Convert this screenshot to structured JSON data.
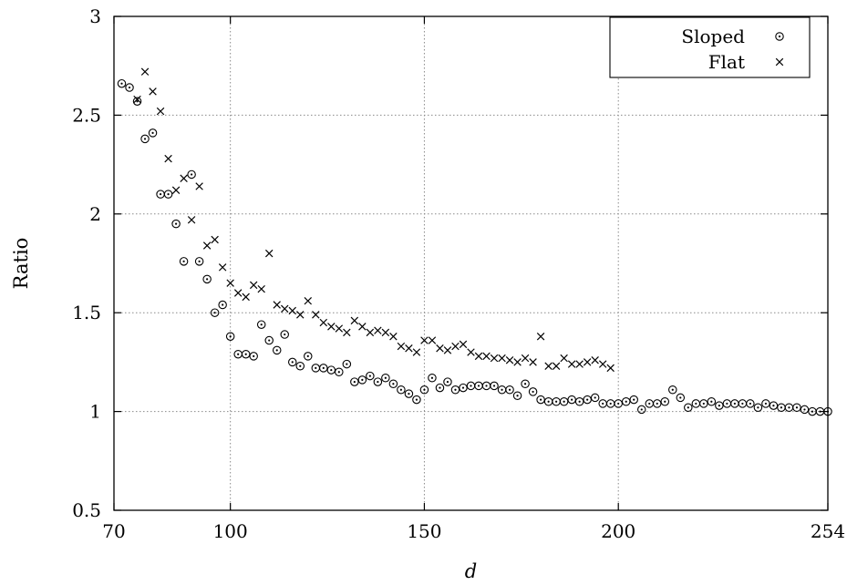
{
  "chart_data": {
    "type": "scatter",
    "title": "",
    "xlabel": "d",
    "ylabel": "Ratio",
    "xlim": [
      70,
      254
    ],
    "ylim": [
      0.5,
      3
    ],
    "x_ticks": [
      70,
      100,
      150,
      200,
      254
    ],
    "x_tick_labels": [
      "70",
      "100",
      "150",
      "200",
      "254"
    ],
    "y_ticks": [
      0.5,
      1,
      1.5,
      2,
      2.5,
      3
    ],
    "y_tick_labels": [
      "0.5",
      "1",
      "1.5",
      "2",
      "2.5",
      "3"
    ],
    "grid": true,
    "legend": "top-right",
    "series": [
      {
        "name": "Sloped",
        "marker": "circle-dot",
        "color": "#000000",
        "points": [
          [
            72,
            2.66
          ],
          [
            74,
            2.64
          ],
          [
            76,
            2.57
          ],
          [
            78,
            2.38
          ],
          [
            80,
            2.41
          ],
          [
            82,
            2.1
          ],
          [
            84,
            2.1
          ],
          [
            86,
            1.95
          ],
          [
            88,
            1.76
          ],
          [
            90,
            2.2
          ],
          [
            92,
            1.76
          ],
          [
            94,
            1.67
          ],
          [
            96,
            1.5
          ],
          [
            98,
            1.54
          ],
          [
            100,
            1.38
          ],
          [
            102,
            1.29
          ],
          [
            104,
            1.29
          ],
          [
            106,
            1.28
          ],
          [
            108,
            1.44
          ],
          [
            110,
            1.36
          ],
          [
            112,
            1.31
          ],
          [
            114,
            1.39
          ],
          [
            116,
            1.25
          ],
          [
            118,
            1.23
          ],
          [
            120,
            1.28
          ],
          [
            122,
            1.22
          ],
          [
            124,
            1.22
          ],
          [
            126,
            1.21
          ],
          [
            128,
            1.2
          ],
          [
            130,
            1.24
          ],
          [
            132,
            1.15
          ],
          [
            134,
            1.16
          ],
          [
            136,
            1.18
          ],
          [
            138,
            1.15
          ],
          [
            140,
            1.17
          ],
          [
            142,
            1.14
          ],
          [
            144,
            1.11
          ],
          [
            146,
            1.09
          ],
          [
            148,
            1.06
          ],
          [
            150,
            1.11
          ],
          [
            152,
            1.17
          ],
          [
            154,
            1.12
          ],
          [
            156,
            1.15
          ],
          [
            158,
            1.11
          ],
          [
            160,
            1.12
          ],
          [
            162,
            1.13
          ],
          [
            164,
            1.13
          ],
          [
            166,
            1.13
          ],
          [
            168,
            1.13
          ],
          [
            170,
            1.11
          ],
          [
            172,
            1.11
          ],
          [
            174,
            1.08
          ],
          [
            176,
            1.14
          ],
          [
            178,
            1.1
          ],
          [
            180,
            1.06
          ],
          [
            182,
            1.05
          ],
          [
            184,
            1.05
          ],
          [
            186,
            1.05
          ],
          [
            188,
            1.06
          ],
          [
            190,
            1.05
          ],
          [
            192,
            1.06
          ],
          [
            194,
            1.07
          ],
          [
            196,
            1.04
          ],
          [
            198,
            1.04
          ],
          [
            200,
            1.04
          ],
          [
            202,
            1.05
          ],
          [
            204,
            1.06
          ],
          [
            206,
            1.01
          ],
          [
            208,
            1.04
          ],
          [
            210,
            1.04
          ],
          [
            212,
            1.05
          ],
          [
            214,
            1.11
          ],
          [
            216,
            1.07
          ],
          [
            218,
            1.02
          ],
          [
            220,
            1.04
          ],
          [
            222,
            1.04
          ],
          [
            224,
            1.05
          ],
          [
            226,
            1.03
          ],
          [
            228,
            1.04
          ],
          [
            230,
            1.04
          ],
          [
            232,
            1.04
          ],
          [
            234,
            1.04
          ],
          [
            236,
            1.02
          ],
          [
            238,
            1.04
          ],
          [
            240,
            1.03
          ],
          [
            242,
            1.02
          ],
          [
            244,
            1.02
          ],
          [
            246,
            1.02
          ],
          [
            248,
            1.01
          ],
          [
            250,
            1.0
          ],
          [
            252,
            1.0
          ],
          [
            254,
            1.0
          ]
        ]
      },
      {
        "name": "Flat",
        "marker": "cross",
        "color": "#000000",
        "points": [
          [
            76,
            2.58
          ],
          [
            78,
            2.72
          ],
          [
            80,
            2.62
          ],
          [
            82,
            2.52
          ],
          [
            84,
            2.28
          ],
          [
            86,
            2.12
          ],
          [
            88,
            2.18
          ],
          [
            90,
            1.97
          ],
          [
            92,
            2.14
          ],
          [
            94,
            1.84
          ],
          [
            96,
            1.87
          ],
          [
            98,
            1.73
          ],
          [
            100,
            1.65
          ],
          [
            102,
            1.6
          ],
          [
            104,
            1.58
          ],
          [
            106,
            1.64
          ],
          [
            108,
            1.62
          ],
          [
            110,
            1.8
          ],
          [
            112,
            1.54
          ],
          [
            114,
            1.52
          ],
          [
            116,
            1.51
          ],
          [
            118,
            1.49
          ],
          [
            120,
            1.56
          ],
          [
            122,
            1.49
          ],
          [
            124,
            1.45
          ],
          [
            126,
            1.43
          ],
          [
            128,
            1.42
          ],
          [
            130,
            1.4
          ],
          [
            132,
            1.46
          ],
          [
            134,
            1.43
          ],
          [
            136,
            1.4
          ],
          [
            138,
            1.41
          ],
          [
            140,
            1.4
          ],
          [
            142,
            1.38
          ],
          [
            144,
            1.33
          ],
          [
            146,
            1.32
          ],
          [
            148,
            1.3
          ],
          [
            150,
            1.36
          ],
          [
            152,
            1.36
          ],
          [
            154,
            1.32
          ],
          [
            156,
            1.31
          ],
          [
            158,
            1.33
          ],
          [
            160,
            1.34
          ],
          [
            162,
            1.3
          ],
          [
            164,
            1.28
          ],
          [
            166,
            1.28
          ],
          [
            168,
            1.27
          ],
          [
            170,
            1.27
          ],
          [
            172,
            1.26
          ],
          [
            174,
            1.25
          ],
          [
            176,
            1.27
          ],
          [
            178,
            1.25
          ],
          [
            180,
            1.38
          ],
          [
            182,
            1.23
          ],
          [
            184,
            1.23
          ],
          [
            186,
            1.27
          ],
          [
            188,
            1.24
          ],
          [
            190,
            1.24
          ],
          [
            192,
            1.25
          ],
          [
            194,
            1.26
          ],
          [
            196,
            1.24
          ],
          [
            198,
            1.22
          ]
        ]
      }
    ]
  }
}
